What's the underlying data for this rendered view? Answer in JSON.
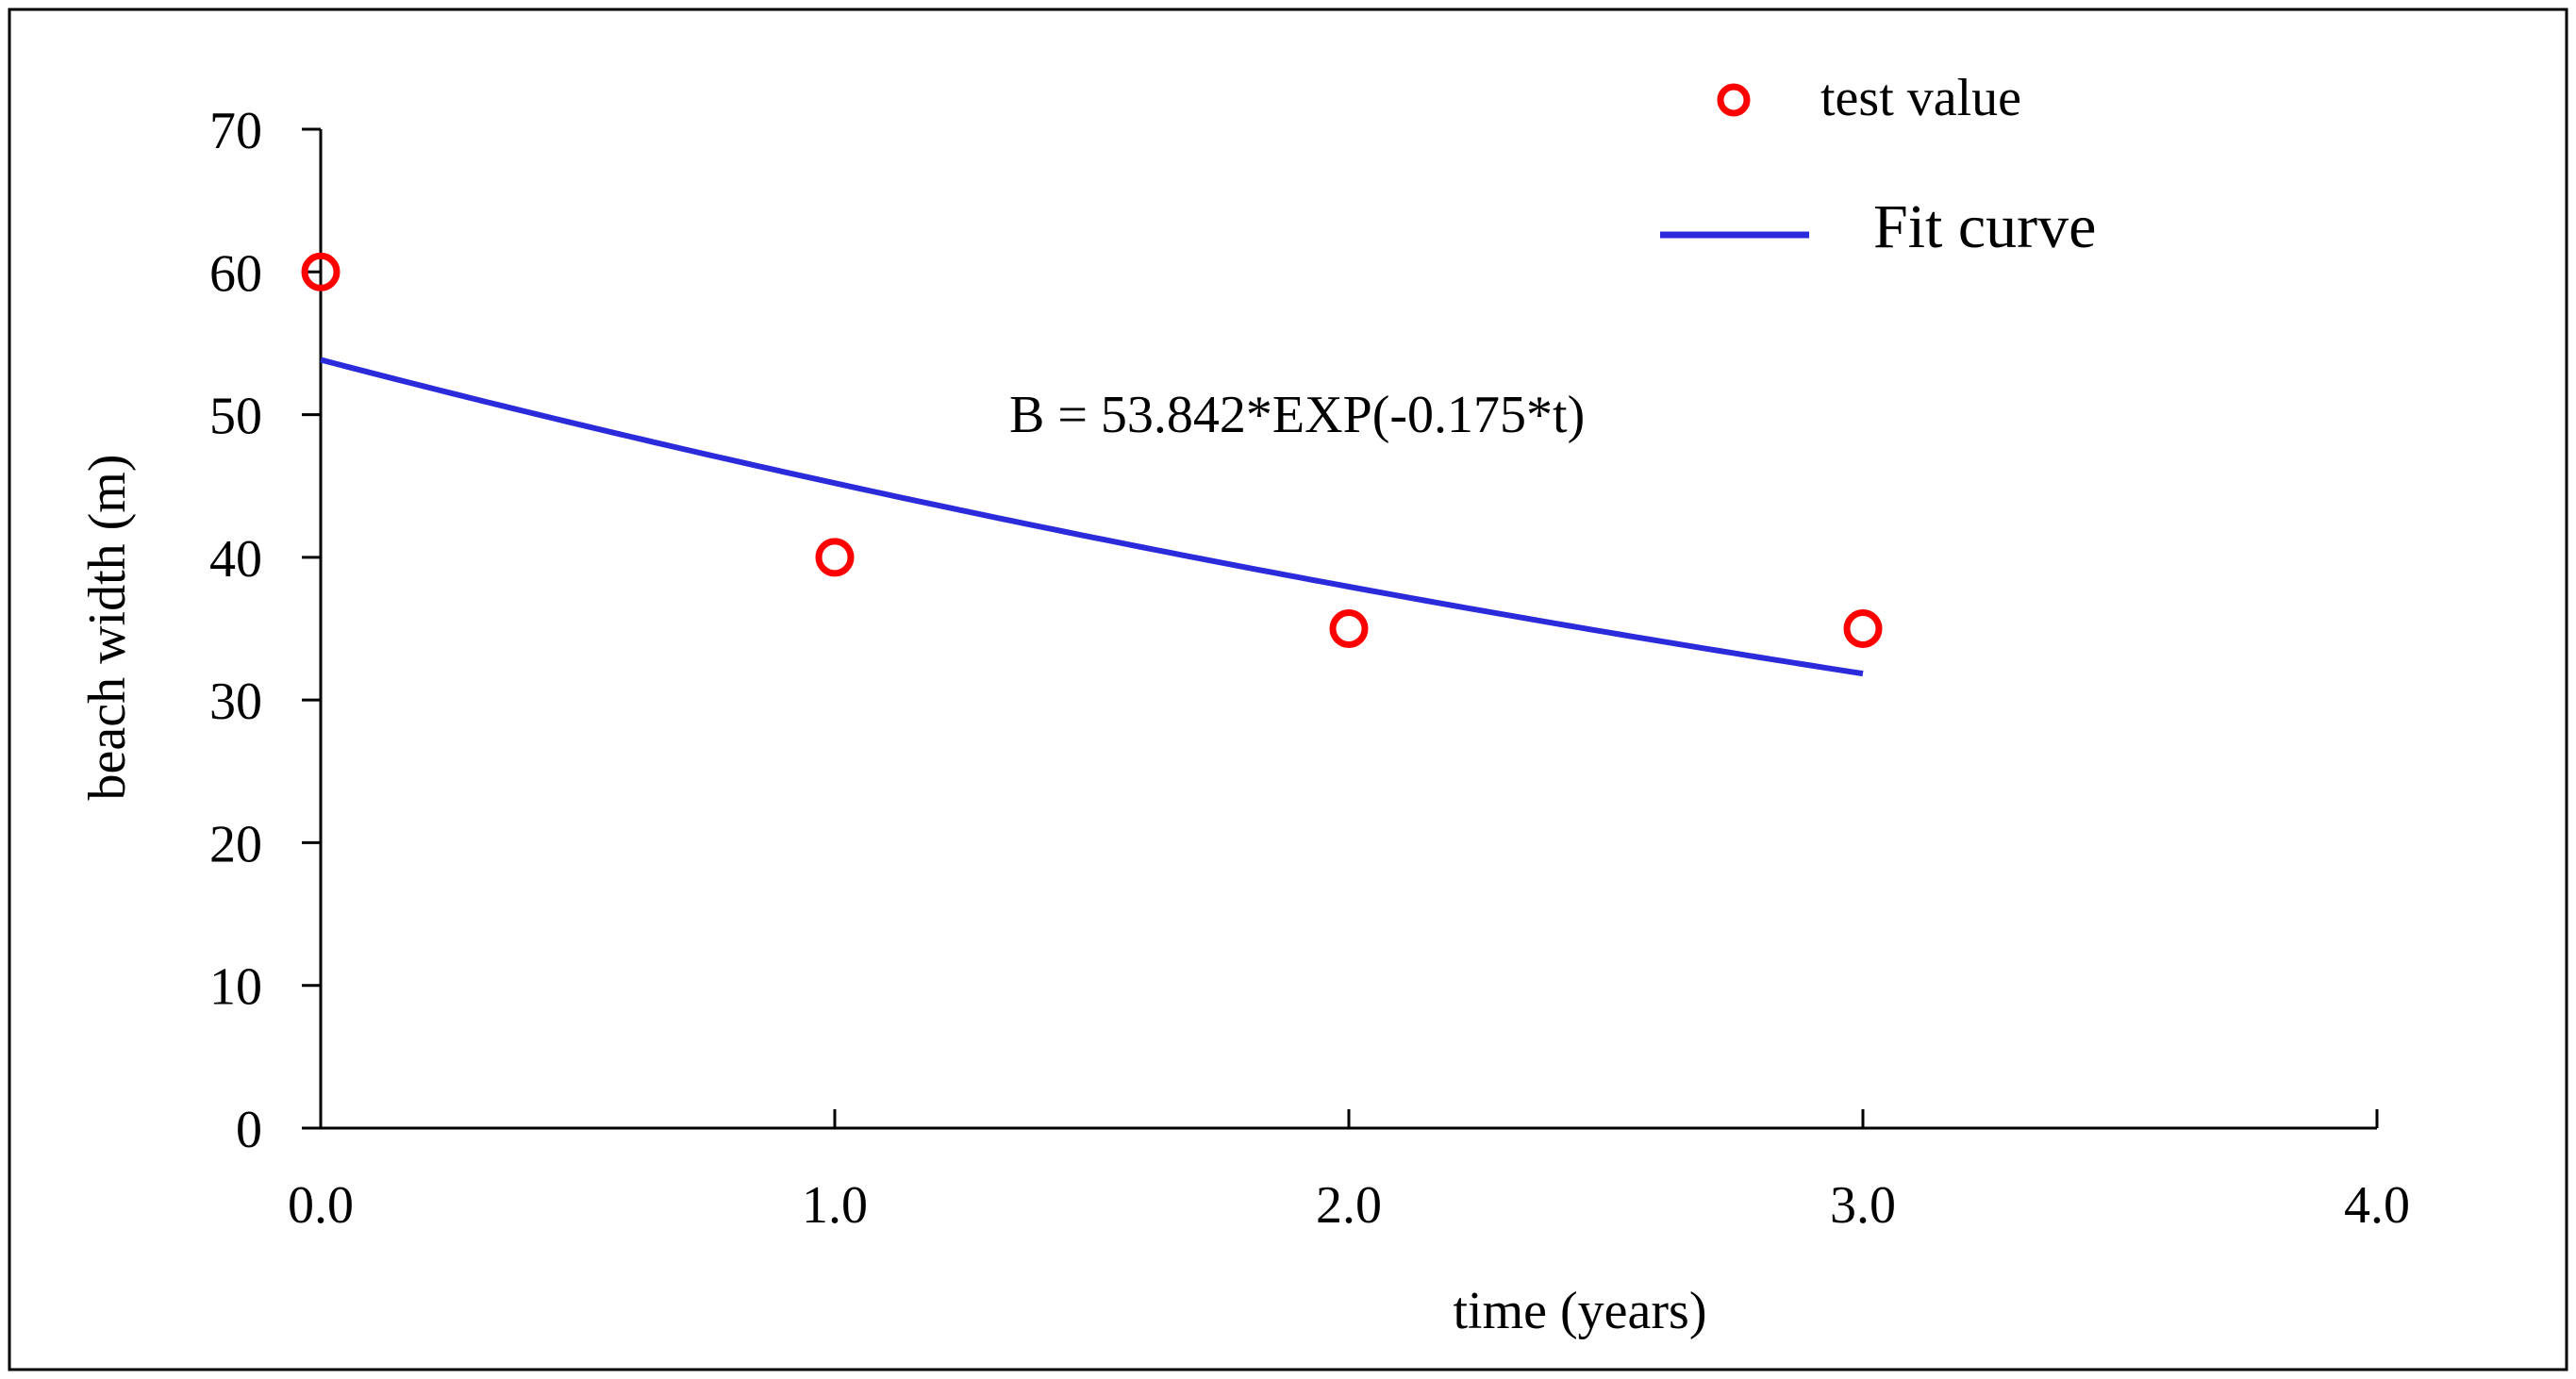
{
  "chart_data": {
    "type": "scatter",
    "title": "",
    "xlabel": "time (years)",
    "ylabel": "beach width (m)",
    "xlim": [
      0,
      4
    ],
    "ylim": [
      0,
      70
    ],
    "x_ticks": [
      "0.0",
      "1.0",
      "2.0",
      "3.0",
      "4.0"
    ],
    "x_tick_values": [
      0,
      1,
      2,
      3,
      4
    ],
    "y_ticks": [
      "0",
      "10",
      "20",
      "30",
      "40",
      "50",
      "60",
      "70"
    ],
    "y_tick_values": [
      0,
      10,
      20,
      30,
      40,
      50,
      60,
      70
    ],
    "series": [
      {
        "name": "test value",
        "kind": "markers",
        "marker": "open-circle",
        "color": "#ff0000",
        "x": [
          0,
          1,
          2,
          3
        ],
        "y": [
          60,
          40,
          35,
          35
        ]
      },
      {
        "name": "Fit curve",
        "kind": "line",
        "color": "#2b2bdc",
        "equation": {
          "a": 53.842,
          "b": -0.175
        },
        "x_range": [
          0,
          3
        ]
      }
    ],
    "annotation": "B = 53.842*EXP(-0.175*t)",
    "legend_position": "top-right",
    "grid": false
  }
}
